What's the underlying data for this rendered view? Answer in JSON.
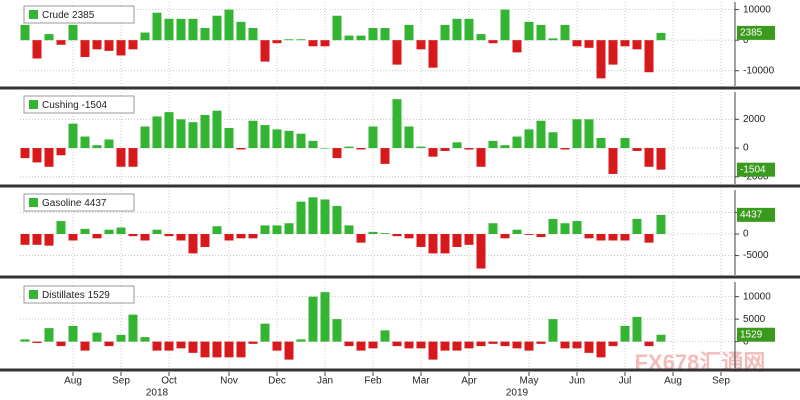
{
  "chart_data": [
    {
      "type": "bar",
      "name": "Crude",
      "color_up": "#33b533",
      "color_down": "#d7191c",
      "ylim": [
        -15000,
        12500
      ],
      "yticks": [
        10000,
        0,
        -10000
      ],
      "grid": true,
      "values": [
        5000,
        -6000,
        2000,
        -1500,
        5000,
        -5500,
        -3000,
        -3500,
        -5000,
        -3000,
        2500,
        9000,
        7000,
        7000,
        7000,
        4000,
        8000,
        10000,
        6000,
        4000,
        -7000,
        -1000,
        300,
        300,
        -2000,
        -2000,
        8000,
        1500,
        1500,
        4000,
        4000,
        -8000,
        5000,
        -3000,
        -9000,
        5000,
        7000,
        7000,
        2000,
        -1000,
        10000,
        -4000,
        6000,
        5000,
        600,
        5000,
        -2000,
        -2500,
        -12500,
        -8000,
        -2000,
        -3000,
        -10500,
        2385,
        null,
        null,
        null,
        null,
        null
      ]
    },
    {
      "type": "bar",
      "name": "Cushing",
      "color_up": "#33b533",
      "color_down": "#d7191c",
      "ylim": [
        -2500,
        3900
      ],
      "yticks": [
        2000,
        0,
        -2000
      ],
      "grid": true,
      "values": [
        -700,
        -1000,
        -1300,
        -500,
        1700,
        800,
        200,
        600,
        -1300,
        -1300,
        1500,
        2200,
        2500,
        2000,
        1800,
        2300,
        2600,
        1400,
        -100,
        1900,
        1600,
        1300,
        1200,
        1000,
        500,
        0,
        -700,
        100,
        -100,
        1500,
        -1100,
        3400,
        1500,
        100,
        -600,
        -200,
        400,
        -100,
        -1300,
        500,
        200,
        800,
        1300,
        1900,
        1100,
        -100,
        2000,
        2000,
        700,
        -1800,
        700,
        -200,
        -1300,
        -1504,
        null,
        null,
        null,
        null,
        null
      ]
    },
    {
      "type": "bar",
      "name": "Gasoline",
      "color_up": "#33b533",
      "color_down": "#d7191c",
      "ylim": [
        -9500,
        10200
      ],
      "yticks": [
        5000,
        0,
        -5000
      ],
      "grid": true,
      "values": [
        -2500,
        -2500,
        -2700,
        3000,
        -1500,
        1200,
        -1000,
        1000,
        1500,
        -500,
        -1500,
        1000,
        -500,
        -1500,
        -4500,
        -3000,
        1800,
        -1500,
        -1000,
        -1000,
        2000,
        2000,
        2500,
        7500,
        8500,
        8000,
        6500,
        2000,
        -2000,
        500,
        200,
        -500,
        -1000,
        -3000,
        -4500,
        -4500,
        -3000,
        -2500,
        -8000,
        2500,
        -1000,
        1000,
        -200,
        -700,
        3500,
        2500,
        3000,
        -1000,
        -1500,
        -1500,
        -1500,
        3500,
        -2000,
        4437,
        null,
        null,
        null,
        null,
        null
      ]
    },
    {
      "type": "bar",
      "name": "Distillates",
      "color_up": "#33b533",
      "color_down": "#d7191c",
      "ylim": [
        -5870,
        13260
      ],
      "yticks": [
        10000,
        5000,
        0
      ],
      "grid": true,
      "categories": [
        null,
        null,
        null,
        null,
        "Aug",
        null,
        null,
        null,
        "Sep",
        null,
        null,
        null,
        "Oct",
        null,
        null,
        null,
        null,
        "Nov",
        null,
        null,
        null,
        "Dec",
        null,
        null,
        null,
        "Jan",
        null,
        null,
        null,
        "Feb",
        null,
        null,
        null,
        "Mar",
        null,
        null,
        null,
        "Apr",
        null,
        null,
        null,
        null,
        "May",
        null,
        null,
        null,
        "Jun",
        null,
        null,
        null,
        "Jul",
        null,
        null,
        null,
        "Aug",
        null,
        null,
        null,
        "Sep"
      ],
      "categories2": [
        null,
        null,
        null,
        null,
        null,
        null,
        null,
        null,
        null,
        null,
        null,
        "2018",
        null,
        null,
        null,
        null,
        null,
        null,
        null,
        null,
        null,
        null,
        null,
        null,
        null,
        null,
        null,
        null,
        null,
        null,
        null,
        null,
        null,
        null,
        null,
        null,
        null,
        null,
        null,
        null,
        null,
        "2019",
        null,
        null,
        null,
        null,
        null,
        null,
        null,
        null,
        null,
        null,
        null,
        null,
        null,
        null,
        null,
        null,
        null
      ],
      "values": [
        500,
        -300,
        3000,
        -1000,
        3500,
        -2000,
        2000,
        -1000,
        1500,
        6000,
        1000,
        -2000,
        -2000,
        -1500,
        -2500,
        -3500,
        -3500,
        -3500,
        -3500,
        -500,
        4000,
        -2000,
        -4000,
        500,
        10000,
        11000,
        5000,
        -1000,
        -2000,
        -1500,
        2500,
        -1000,
        -1500,
        -1500,
        -4000,
        -2000,
        -2000,
        -1500,
        -1000,
        -500,
        -1000,
        -1500,
        -2000,
        -500,
        5000,
        -1500,
        -1500,
        -2500,
        -3500,
        -1000,
        3500,
        5500,
        -1000,
        1529,
        null,
        null,
        null,
        null,
        null
      ]
    }
  ],
  "watermark": "FX678汇通网"
}
